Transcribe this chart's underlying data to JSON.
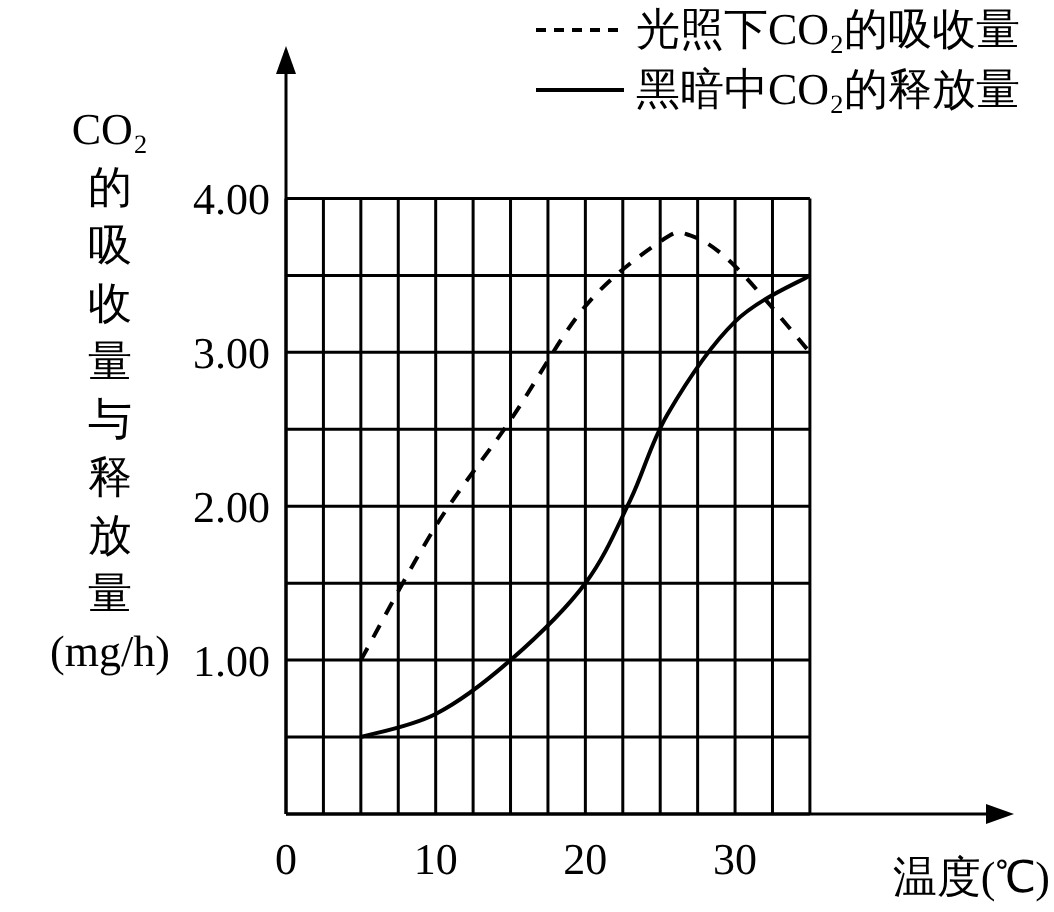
{
  "chart_data": {
    "type": "line",
    "xlabel": "温度(℃)",
    "ylabel": "CO₂的吸收量与释放量(mg/h)",
    "xlim": [
      0,
      47.7
    ],
    "ylim": [
      0,
      4.9
    ],
    "xticks": [
      0,
      {
        "value": 2.5,
        "label": null
      },
      {
        "value": 5,
        "label": null
      },
      {
        "value": 7.5,
        "label": null
      },
      10,
      {
        "value": 12.5,
        "label": null
      },
      {
        "value": 15,
        "label": null
      },
      {
        "value": 17.5,
        "label": null
      },
      20,
      {
        "value": 22.5,
        "label": null
      },
      {
        "value": 25,
        "label": null
      },
      {
        "value": 27.5,
        "label": null
      },
      30,
      {
        "value": 32.5,
        "label": null
      },
      {
        "value": 35,
        "label": null
      }
    ],
    "yticks": [
      {
        "value": 0,
        "label": null
      },
      {
        "value": 0.5,
        "label": null
      },
      {
        "value": 1,
        "label": "1.00"
      },
      {
        "value": 1.5,
        "label": null
      },
      {
        "value": 2,
        "label": "2.00"
      },
      {
        "value": 2.5,
        "label": null
      },
      {
        "value": 3,
        "label": "3.00"
      },
      {
        "value": 3.5,
        "label": null
      },
      {
        "value": 4,
        "label": "4.00"
      }
    ],
    "grid": true,
    "legend": "top right",
    "series": [
      {
        "name": "光照下CO₂的吸收量",
        "color": "#000000",
        "line_style": "dashed",
        "x": [
          5,
          10,
          15,
          20,
          25,
          27,
          30,
          35
        ],
        "values": [
          1.0,
          1.87,
          2.56,
          3.3,
          3.72,
          3.76,
          3.56,
          3.0
        ]
      },
      {
        "name": "黑暗中CO₂的释放量",
        "color": "#000000",
        "line_style": "solid",
        "x": [
          5,
          10,
          15,
          20,
          23,
          25.5,
          30,
          35
        ],
        "values": [
          0.5,
          0.65,
          1.0,
          1.5,
          2.04,
          2.6,
          3.2,
          3.5
        ]
      }
    ]
  }
}
